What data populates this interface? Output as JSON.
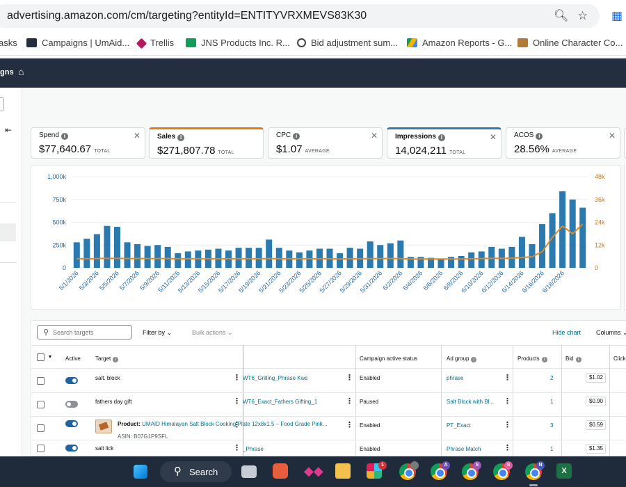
{
  "browser": {
    "url": "advertising.amazon.com/cm/targeting?entityId=ENTITYVRXMEVS83K30",
    "bookmarks": [
      {
        "label": "asks",
        "color": ""
      },
      {
        "label": "Campaigns | UmAid...",
        "color": "#232f3e"
      },
      {
        "label": "Trellis",
        "color": "#b3195f"
      },
      {
        "label": "JNS Products Inc. R...",
        "color": "#0f9d58"
      },
      {
        "label": "Bid adjustment sum...",
        "color": "#444"
      },
      {
        "label": "Amazon Reports - G...",
        "color": "#f4b400"
      },
      {
        "label": "Online Character Co...",
        "color": "#b07a3a"
      }
    ]
  },
  "app": {
    "header_title": "gns"
  },
  "metrics": [
    {
      "label": "Spend",
      "value": "$77,640.67",
      "unit": "TOTAL"
    },
    {
      "label": "Sales",
      "value": "$271,807.78",
      "unit": "TOTAL"
    },
    {
      "label": "CPC",
      "value": "$1.07",
      "unit": "AVERAGE"
    },
    {
      "label": "Impressions",
      "value": "14,024,211",
      "unit": "TOTAL"
    },
    {
      "label": "ACOS",
      "value": "28.56%",
      "unit": "AVERAGE"
    }
  ],
  "chart_data": {
    "type": "bar",
    "title": "",
    "colors": {
      "bars": "#2a7ab0",
      "line": "#d98a2b"
    },
    "y_left": {
      "ticks": [
        "0",
        "250k",
        "500k",
        "750k",
        "1,000k"
      ],
      "range": [
        0,
        1000000
      ]
    },
    "y_right": {
      "ticks": [
        "0",
        "12k",
        "24k",
        "36k",
        "48k"
      ],
      "range": [
        0,
        48000
      ]
    },
    "x_tick_labels": [
      "5/1/2026",
      "5/3/2026",
      "5/5/2026",
      "5/7/2026",
      "5/9/2026",
      "5/11/2026",
      "5/13/2026",
      "5/15/2026",
      "5/17/2026",
      "5/19/2026",
      "5/21/2026",
      "5/23/2026",
      "5/25/2026",
      "5/27/2026",
      "5/29/2026",
      "5/31/2026",
      "6/2/2026",
      "6/4/2026",
      "6/6/2026",
      "6/8/2026",
      "6/10/2026",
      "6/12/2026",
      "6/14/2026",
      "6/16/2026",
      "6/18/2026"
    ],
    "series": [
      {
        "axis": "left",
        "type": "bar",
        "values": [
          280000,
          320000,
          370000,
          460000,
          450000,
          280000,
          260000,
          240000,
          250000,
          230000,
          160000,
          180000,
          190000,
          200000,
          210000,
          190000,
          220000,
          220000,
          220000,
          310000,
          220000,
          190000,
          170000,
          190000,
          210000,
          210000,
          160000,
          220000,
          210000,
          290000,
          250000,
          270000,
          300000,
          120000,
          120000,
          110000,
          100000,
          120000,
          130000,
          170000,
          180000,
          230000,
          210000,
          230000,
          340000,
          260000,
          480000,
          600000,
          840000,
          750000,
          660000
        ]
      },
      {
        "axis": "right",
        "type": "line",
        "values": [
          4800,
          4800,
          4900,
          5000,
          5000,
          4900,
          4900,
          4900,
          4900,
          4900,
          4800,
          4800,
          4800,
          4800,
          4800,
          4800,
          4800,
          4800,
          4800,
          4900,
          4800,
          4800,
          4800,
          4800,
          4800,
          4800,
          4700,
          4800,
          4800,
          4900,
          4900,
          4900,
          4900,
          4700,
          4700,
          4700,
          4700,
          4700,
          4700,
          4800,
          4900,
          5000,
          5000,
          5100,
          5500,
          5800,
          8500,
          16000,
          22000,
          18000,
          23000
        ]
      }
    ]
  },
  "table": {
    "search_placeholder": "Search targets",
    "filter_label": "Filter by",
    "bulk_label": "Bulk actions",
    "hide_chart": "Hide chart",
    "columns": "Columns",
    "headers": {
      "active": "Active",
      "target": "Target",
      "campaign_status": "Campaign active status",
      "ad_group": "Ad group",
      "products": "Products",
      "bid": "Bid",
      "clicks": "Clicks"
    },
    "rows": [
      {
        "active": true,
        "target": "salt. block",
        "campaign": "WT6_Grilling_Phrase Kws",
        "status": "Enabled",
        "ad_group": "phrase",
        "products": "2",
        "bid": "$1.02"
      },
      {
        "active": false,
        "target": "fathers day gift",
        "campaign": "WT6_Exact_Fathers Gifting_1",
        "status": "Paused",
        "ad_group": "Salt Block with Bl...",
        "products": "1",
        "bid": "$0.90"
      },
      {
        "active": true,
        "product_label": "Product:",
        "target": "UMAID Himalayan Salt Block Cooking Plate 12x8x1.5 – Food Grade Pink...",
        "asin": "ASIN: B07G1P9SFL",
        "campaign": "",
        "status": "Enabled",
        "ad_group": "PT_Exact",
        "products": "3",
        "bid": "$0.59"
      },
      {
        "active": true,
        "target": "salt lick",
        "campaign": "_Phrase",
        "status": "Enabled",
        "ad_group": "Phrase Match",
        "products": "1",
        "bid": "$1.35"
      }
    ]
  },
  "taskbar": {
    "search_label": "Search",
    "slack_badge": "1",
    "profiles": [
      "A",
      "S",
      "S",
      "N"
    ]
  }
}
